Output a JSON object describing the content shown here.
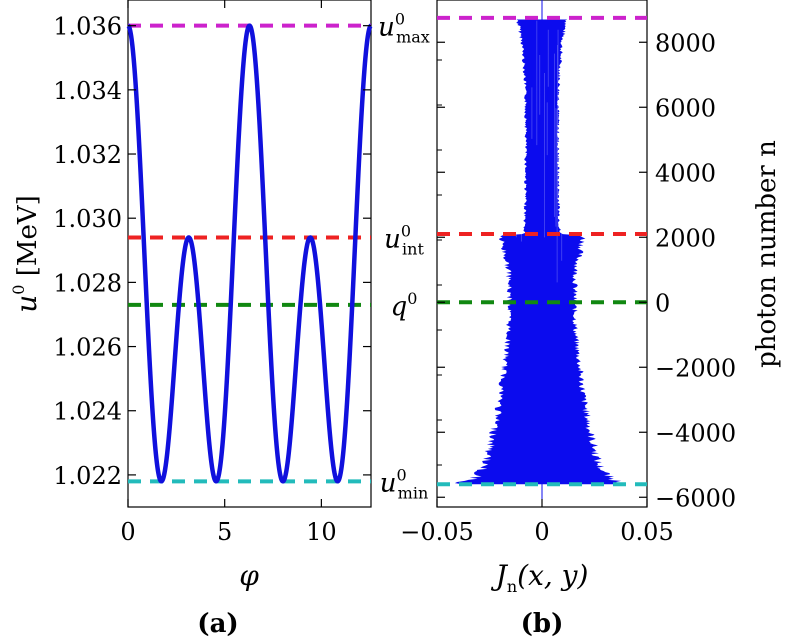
{
  "chart_data": [
    {
      "panel": "(a)",
      "type": "line",
      "xlabel": "φ",
      "ylabel_main": "u",
      "ylabel_sup": "0",
      "ylabel_unit": " [MeV]",
      "xlim": [
        0,
        12.566
      ],
      "ylim": [
        1.021,
        1.0368
      ],
      "xticks": [
        0,
        5,
        10
      ],
      "xtick_labels": [
        "0",
        "5",
        "10"
      ],
      "yticks": [
        1.022,
        1.024,
        1.026,
        1.028,
        1.03,
        1.032,
        1.034,
        1.036
      ],
      "ytick_labels": [
        "1.022",
        "1.024",
        "1.026",
        "1.028",
        "1.030",
        "1.032",
        "1.034",
        "1.036"
      ],
      "curve": {
        "color": "#1010dd",
        "description": "periodic energy u0(phi) with period 2*pi",
        "points": [
          [
            0.0,
            1.036
          ],
          [
            0.5,
            1.0335
          ],
          [
            1.0,
            1.0275
          ],
          [
            1.57,
            1.0218
          ],
          [
            2.0,
            1.0225
          ],
          [
            2.6,
            1.0268
          ],
          [
            3.14,
            1.0294
          ],
          [
            3.7,
            1.0268
          ],
          [
            4.3,
            1.0225
          ],
          [
            4.71,
            1.0218
          ],
          [
            5.3,
            1.0275
          ],
          [
            5.8,
            1.0335
          ],
          [
            6.28,
            1.036
          ],
          [
            6.8,
            1.0335
          ],
          [
            7.3,
            1.0275
          ],
          [
            7.85,
            1.0218
          ],
          [
            8.3,
            1.0225
          ],
          [
            8.9,
            1.0268
          ],
          [
            9.42,
            1.0294
          ],
          [
            10.0,
            1.0268
          ],
          [
            10.6,
            1.0225
          ],
          [
            11.0,
            1.0218
          ],
          [
            11.6,
            1.0275
          ],
          [
            12.1,
            1.0335
          ],
          [
            12.566,
            1.036
          ]
        ]
      },
      "hlines": [
        {
          "name": "u_max",
          "y": 1.036,
          "color": "#cc22cc"
        },
        {
          "name": "u_int",
          "y": 1.0294,
          "color": "#ee2222"
        },
        {
          "name": "q",
          "y": 1.0273,
          "color": "#118811"
        },
        {
          "name": "u_min",
          "y": 1.0218,
          "color": "#22bbbb"
        }
      ]
    },
    {
      "panel": "(b)",
      "type": "area",
      "xlabel_fn": "J",
      "xlabel_sub": "n",
      "xlabel_args": "(x, y)",
      "ylabel": "photon number n",
      "xlim": [
        -0.05,
        0.05
      ],
      "ylim": [
        -6300,
        9300
      ],
      "xticks": [
        -0.05,
        0,
        0.05
      ],
      "xtick_labels": [
        "−0.05",
        "0",
        "0.05"
      ],
      "yticks": [
        -6000,
        -4000,
        -2000,
        0,
        2000,
        4000,
        6000,
        8000
      ],
      "ytick_labels": [
        "−6000",
        "−4000",
        "−2000",
        "0",
        "2000",
        "4000",
        "6000",
        "8000"
      ],
      "fill_color": "#0b0bee",
      "envelope": {
        "description": "half-width of |J_n| band vs photon number n",
        "n": [
          8700,
          8500,
          8000,
          7000,
          6000,
          5000,
          4000,
          3000,
          2100,
          2050,
          1500,
          1000,
          0,
          -1000,
          -2000,
          -3000,
          -4000,
          -5000,
          -5400,
          -5600
        ],
        "halfwidth": [
          0.012,
          0.011,
          0.0095,
          0.0083,
          0.0078,
          0.0077,
          0.0078,
          0.008,
          0.0085,
          0.02,
          0.018,
          0.016,
          0.0155,
          0.016,
          0.018,
          0.02,
          0.023,
          0.027,
          0.032,
          0.04
        ]
      },
      "hlines": [
        {
          "name": "u_max",
          "y": 8750,
          "color": "#cc22cc"
        },
        {
          "name": "u_int",
          "y": 2100,
          "color": "#ee2222"
        },
        {
          "name": "q",
          "y": 0,
          "color": "#118811"
        },
        {
          "name": "u_min",
          "y": -5600,
          "color": "#22bbbb"
        }
      ]
    }
  ],
  "mid_labels": [
    {
      "name": "u_max",
      "base": "u",
      "sup": "0",
      "sub": "max"
    },
    {
      "name": "u_int",
      "base": "u",
      "sup": "0",
      "sub": "int"
    },
    {
      "name": "q",
      "base": "q",
      "sup": "0",
      "sub": ""
    },
    {
      "name": "u_min",
      "base": "u",
      "sup": "0",
      "sub": "min"
    }
  ],
  "panel_labels": {
    "a": "(a)",
    "b": "(b)"
  }
}
